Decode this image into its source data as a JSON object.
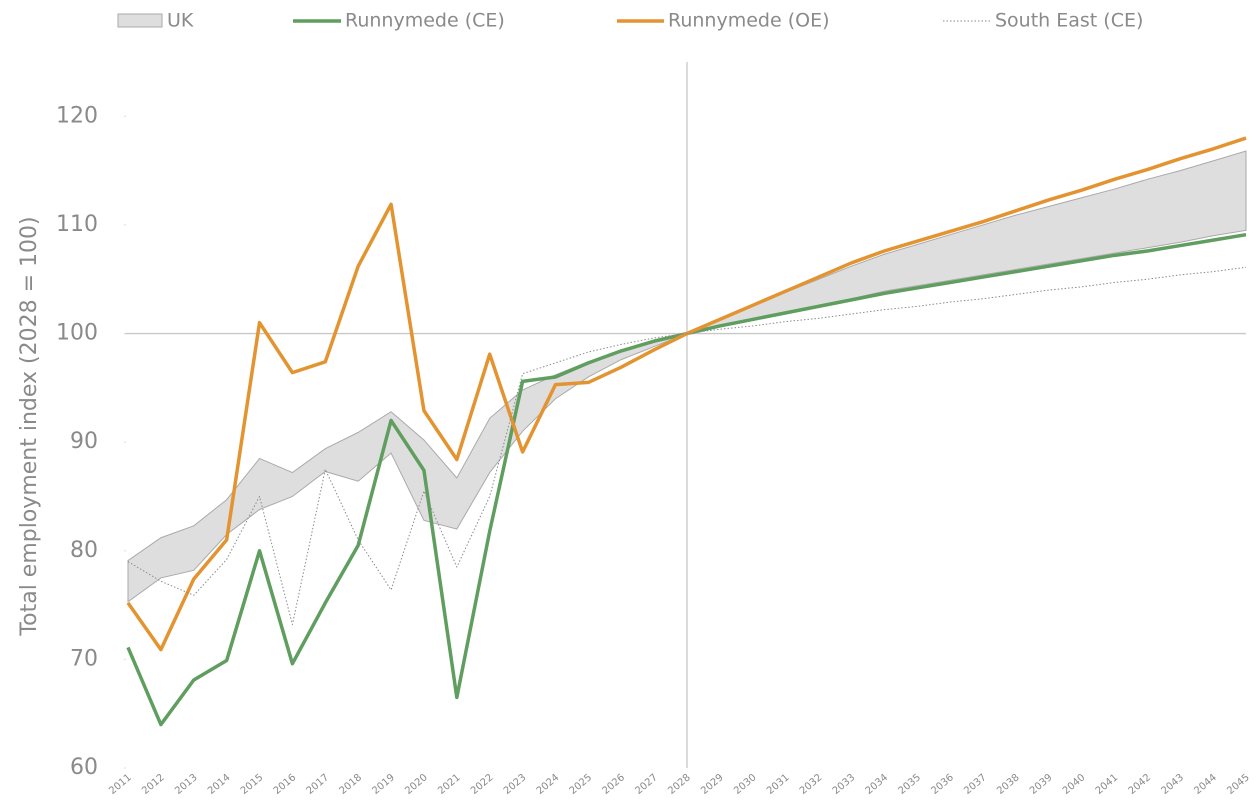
{
  "chart_data": {
    "type": "line",
    "y_label": "Total employment index (2028 = 100)",
    "x": [
      2011,
      2012,
      2013,
      2014,
      2015,
      2016,
      2017,
      2018,
      2019,
      2020,
      2021,
      2022,
      2023,
      2024,
      2025,
      2026,
      2027,
      2028,
      2029,
      2030,
      2031,
      2032,
      2033,
      2034,
      2035,
      2036,
      2037,
      2038,
      2039,
      2040,
      2041,
      2042,
      2043,
      2044,
      2045
    ],
    "xlim": [
      2011,
      2045
    ],
    "ylim": [
      60,
      125
    ],
    "yticks": [
      60,
      70,
      80,
      90,
      100,
      110,
      120
    ],
    "reference_x": 2028,
    "reference_y": 100,
    "band": {
      "name": "UK",
      "color": "#dedede",
      "edge_color": "#aaaaaa",
      "high": [
        79.1,
        81.2,
        82.3,
        84.7,
        88.5,
        87.2,
        89.4,
        90.9,
        92.8,
        90.2,
        86.7,
        92.2,
        94.8,
        96.2,
        97.4,
        98.3,
        99.2,
        100,
        101.2,
        102.5,
        103.8,
        105.0,
        106.2,
        107.3,
        108.2,
        109.1,
        110.0,
        110.9,
        111.7,
        112.5,
        113.3,
        114.2,
        115.0,
        115.9,
        116.8
      ],
      "low": [
        75.3,
        77.5,
        78.2,
        81.5,
        83.8,
        85.0,
        87.3,
        86.4,
        89.0,
        82.8,
        82.0,
        87.2,
        91.0,
        94.0,
        96.0,
        97.6,
        98.8,
        100,
        100.7,
        101.4,
        102.0,
        102.6,
        103.2,
        103.9,
        104.4,
        104.9,
        105.4,
        105.9,
        106.4,
        106.9,
        107.4,
        107.9,
        108.4,
        109.0,
        109.5
      ]
    },
    "series": [
      {
        "name": "Runnymede (CE)",
        "color": "#5f9e5f",
        "style": "solid",
        "values": [
          71.1,
          64.0,
          68.1,
          69.9,
          80.0,
          69.6,
          75.2,
          80.5,
          92.0,
          87.4,
          66.5,
          81.8,
          95.6,
          96.0,
          97.3,
          98.4,
          99.3,
          100,
          100.7,
          101.3,
          101.9,
          102.5,
          103.1,
          103.7,
          104.2,
          104.7,
          105.2,
          105.7,
          106.2,
          106.7,
          107.2,
          107.6,
          108.1,
          108.6,
          109.1
        ]
      },
      {
        "name": "Runnymede (OE)",
        "color": "#e39431",
        "style": "solid",
        "values": [
          75.2,
          70.9,
          77.4,
          81.0,
          101.0,
          96.4,
          97.4,
          106.2,
          111.9,
          92.9,
          88.4,
          98.1,
          89.1,
          95.3,
          95.5,
          96.9,
          98.5,
          100,
          101.3,
          102.6,
          103.9,
          105.2,
          106.5,
          107.6,
          108.5,
          109.4,
          110.3,
          111.3,
          112.3,
          113.2,
          114.2,
          115.1,
          116.1,
          117.0,
          118.0
        ]
      },
      {
        "name": "South East (CE)",
        "color": "#8a8a8a",
        "style": "dotted",
        "values": [
          79.0,
          77.2,
          75.9,
          79.2,
          85.0,
          73.2,
          87.5,
          81.0,
          76.4,
          85.5,
          78.5,
          85.0,
          96.3,
          97.3,
          98.3,
          99.0,
          99.6,
          100,
          100.4,
          100.7,
          101.1,
          101.4,
          101.8,
          102.2,
          102.5,
          102.9,
          103.2,
          103.6,
          104.0,
          104.3,
          104.7,
          105.0,
          105.4,
          105.7,
          106.1
        ]
      }
    ]
  }
}
